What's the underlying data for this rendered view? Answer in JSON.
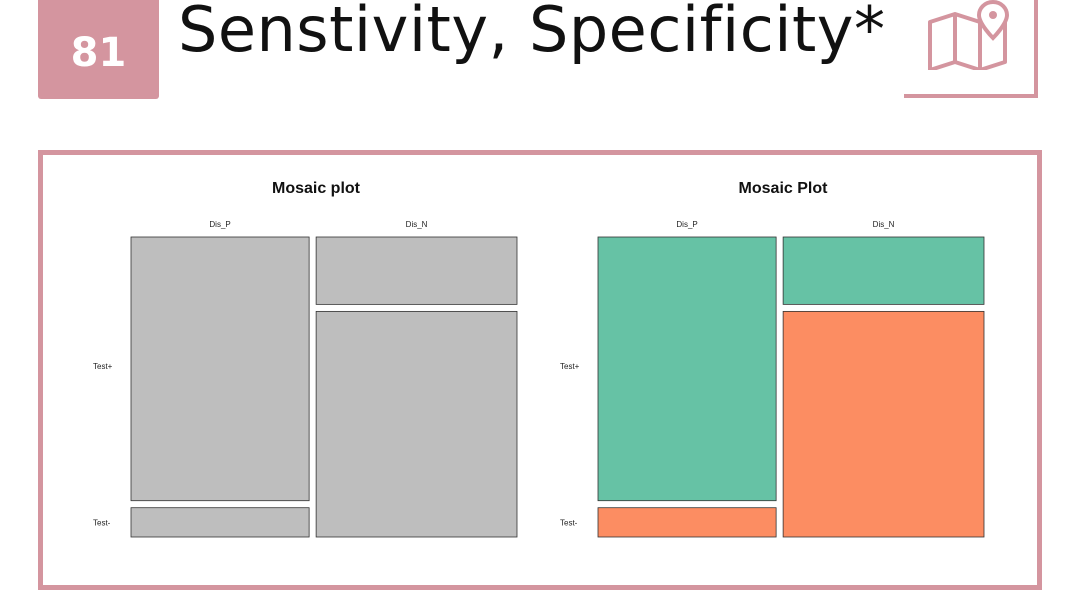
{
  "header": {
    "slide_number": "81",
    "title": "Senstivity, Specificity*",
    "icon": "map-pin-icon"
  },
  "colors": {
    "accent": "#d4959f",
    "mosaic_gray": "#bebebe",
    "teal": "#66c2a5",
    "orange": "#fc8d62"
  },
  "chart_data": [
    {
      "type": "mosaic",
      "title": "Mosaic plot",
      "columns": [
        "Dis_P",
        "Dis_N"
      ],
      "rows": [
        "Test+",
        "Test-"
      ],
      "column_proportions": [
        0.47,
        0.53
      ],
      "row_proportions_within_column": [
        [
          0.9,
          0.1
        ],
        [
          0.23,
          0.77
        ]
      ],
      "fill": [
        "#bebebe",
        "#bebebe"
      ]
    },
    {
      "type": "mosaic",
      "title": "Mosaic Plot",
      "columns": [
        "Dis_P",
        "Dis_N"
      ],
      "rows": [
        "Test+",
        "Test-"
      ],
      "column_proportions": [
        0.47,
        0.53
      ],
      "row_proportions_within_column": [
        [
          0.9,
          0.1
        ],
        [
          0.23,
          0.77
        ]
      ],
      "fill": [
        "#66c2a5",
        "#fc8d62"
      ]
    }
  ]
}
